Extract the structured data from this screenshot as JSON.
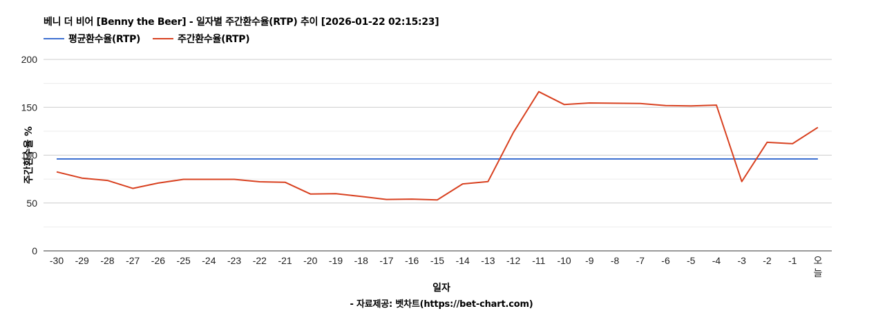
{
  "header": {
    "title": "베니 더 비어 [Benny the Beer] - 일자별 주간환수율(RTP) 추이 [2026-01-22 02:15:23]"
  },
  "legend": {
    "items": [
      {
        "label": "평균환수율(RTP)",
        "color": "#3c6fd1"
      },
      {
        "label": "주간환수율(RTP)",
        "color": "#d8401f"
      }
    ]
  },
  "axes": {
    "y_title": "주간환수율 %",
    "x_title": "일자",
    "credit": "- 자료제공: 벳차트(https://bet-chart.com)"
  },
  "chart_data": {
    "type": "line",
    "title": "베니 더 비어 [Benny the Beer] - 일자별 주간환수율(RTP) 추이 [2026-01-22 02:15:23]",
    "xlabel": "일자",
    "ylabel": "주간환수율 %",
    "ylim": [
      0,
      200
    ],
    "yticks": [
      0,
      50,
      100,
      150,
      200
    ],
    "grid": true,
    "legend_position": "top-left",
    "categories": [
      "-30",
      "-29",
      "-28",
      "-27",
      "-26",
      "-25",
      "-24",
      "-23",
      "-22",
      "-21",
      "-20",
      "-19",
      "-18",
      "-17",
      "-16",
      "-15",
      "-14",
      "-13",
      "-12",
      "-11",
      "-10",
      "-9",
      "-8",
      "-7",
      "-6",
      "-5",
      "-4",
      "-3",
      "-2",
      "-1",
      "오늘"
    ],
    "series": [
      {
        "name": "평균환수율(RTP)",
        "color": "#3c6fd1",
        "values": [
          96,
          96,
          96,
          96,
          96,
          96,
          96,
          96,
          96,
          96,
          96,
          96,
          96,
          96,
          96,
          96,
          96,
          96,
          96,
          96,
          96,
          96,
          96,
          96,
          96,
          96,
          96,
          96,
          96,
          96,
          96
        ]
      },
      {
        "name": "주간환수율(RTP)",
        "color": "#d8401f",
        "values": [
          82.5,
          76,
          73.6,
          65.3,
          70.8,
          74.7,
          74.7,
          74.7,
          72.2,
          71.7,
          59.4,
          59.7,
          56.8,
          53.7,
          54.1,
          53.2,
          70,
          72.4,
          123.7,
          166.3,
          152.9,
          154.5,
          154.2,
          154,
          151.8,
          151.4,
          152.3,
          72.4,
          113.4,
          112,
          129
        ]
      }
    ]
  }
}
